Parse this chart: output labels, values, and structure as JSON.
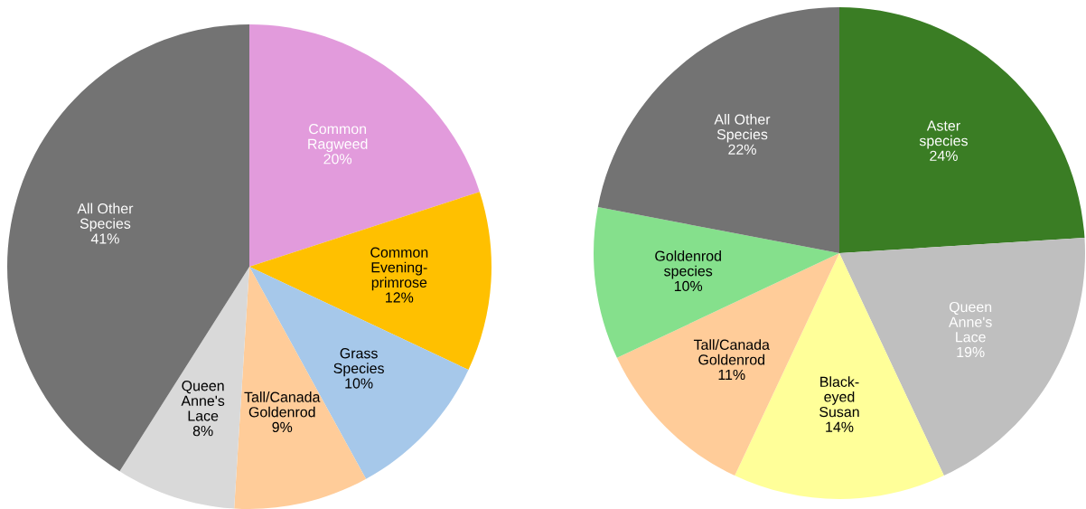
{
  "chart_data": [
    {
      "type": "pie",
      "categories": [
        "Common\nRagweed",
        "Common\nEvening-\nprimrose",
        "Grass\nSpecies",
        "Tall/Canada\nGoldenrod",
        "Queen\nAnne's\nLace",
        "All Other\nSpecies"
      ],
      "values": [
        20,
        12,
        10,
        9,
        8,
        41
      ],
      "value_labels": [
        "20%",
        "12%",
        "10%",
        "9%",
        "8%",
        "41%"
      ],
      "colors": [
        "#e29bdc",
        "#ffc000",
        "#a6c8ea",
        "#ffcc99",
        "#d9d9d9",
        "#737373"
      ]
    },
    {
      "type": "pie",
      "categories": [
        "Aster\nspecies",
        "Queen\nAnne's\nLace",
        "Black-\neyed\nSusan",
        "Tall/Canada\nGoldenrod",
        "Goldenrod\nspecies",
        "All Other\nSpecies"
      ],
      "values": [
        24,
        19,
        14,
        11,
        10,
        22
      ],
      "value_labels": [
        "24%",
        "19%",
        "14%",
        "11%",
        "10%",
        "22%"
      ],
      "colors": [
        "#3a7d24",
        "#bfbfbf",
        "#ffff99",
        "#ffcc99",
        "#85e08c",
        "#737373"
      ]
    }
  ]
}
